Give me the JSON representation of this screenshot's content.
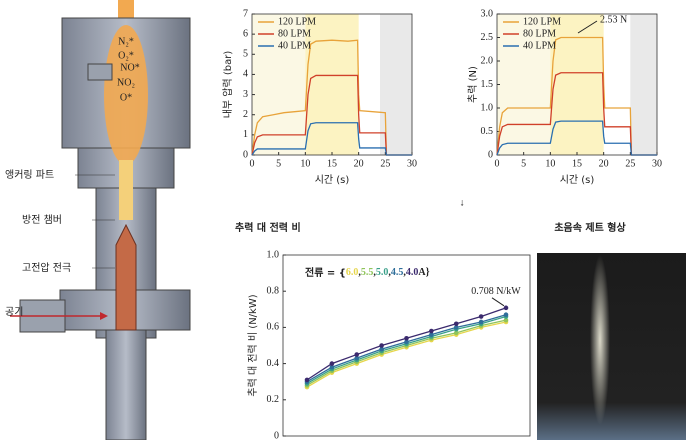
{
  "chart_data": [
    {
      "type": "line",
      "ylabel": "내부 압력 (bar)",
      "xlabel": "시간 (s)",
      "xlim": [
        0,
        30
      ],
      "xticks": [
        0,
        5,
        10,
        15,
        20,
        25,
        30
      ],
      "ylim": [
        0,
        7
      ],
      "yticks": [
        0,
        1,
        2,
        3,
        4,
        5,
        6,
        7
      ],
      "legend": "upper left",
      "regions": [
        {
          "start": 0,
          "end": 10,
          "color": "#fbf8e4"
        },
        {
          "start": 10,
          "end": 20,
          "color": "#fcf3c2"
        },
        {
          "start": 24,
          "end": 30,
          "color": "#e9e9e9"
        }
      ],
      "x": [
        0,
        0.5,
        1,
        2,
        4,
        6,
        8,
        10,
        10.5,
        11,
        12,
        15,
        18,
        19.8,
        20,
        20.2,
        25,
        25.2,
        30
      ],
      "series": [
        {
          "name": "120 LPM",
          "color": "#e8a33a",
          "values": [
            0,
            1.0,
            1.6,
            1.9,
            2.0,
            2.1,
            2.15,
            2.2,
            4.5,
            5.5,
            5.65,
            5.7,
            5.65,
            5.7,
            3.0,
            2.2,
            2.1,
            0,
            0
          ]
        },
        {
          "name": "80 LPM",
          "color": "#d0402a",
          "values": [
            0,
            0.6,
            0.9,
            1.0,
            1.0,
            1.0,
            1.0,
            1.0,
            3.0,
            3.8,
            3.95,
            3.95,
            3.95,
            3.95,
            2.0,
            1.1,
            1.1,
            0,
            0
          ]
        },
        {
          "name": "40 LPM",
          "color": "#2a6fb0",
          "values": [
            0,
            0.2,
            0.3,
            0.3,
            0.3,
            0.3,
            0.3,
            0.3,
            1.2,
            1.55,
            1.6,
            1.6,
            1.6,
            1.6,
            0.8,
            0.35,
            0.35,
            0,
            0
          ]
        }
      ]
    },
    {
      "type": "line",
      "ylabel": "추력 (N)",
      "xlabel": "시간 (s)",
      "xlim": [
        0,
        30
      ],
      "xticks": [
        0,
        5,
        10,
        15,
        20,
        25,
        30
      ],
      "ylim": [
        0,
        3
      ],
      "yticks": [
        0,
        0.5,
        {
          "value": 1,
          "label": "1.0"
        },
        1.5,
        {
          "value": 2,
          "label": "2.0"
        },
        2.5,
        {
          "value": 3,
          "label": "3.0"
        }
      ],
      "legend": "upper left",
      "regions": [
        {
          "start": 0,
          "end": 10,
          "color": "#fbf8e4"
        },
        {
          "start": 10,
          "end": 20,
          "color": "#fcf3c2"
        },
        {
          "start": 25,
          "end": 30,
          "color": "#e9e9e9"
        }
      ],
      "annotation": "2.53 N",
      "x": [
        0,
        0.5,
        1,
        2,
        4,
        6,
        8,
        10,
        10.5,
        11,
        12,
        15,
        18,
        19.8,
        20,
        20.2,
        25,
        25.2,
        30
      ],
      "series": [
        {
          "name": "120 LPM",
          "color": "#e8a33a",
          "values": [
            0,
            0.6,
            0.9,
            1.0,
            1.0,
            1.0,
            1.0,
            1.0,
            2.0,
            2.45,
            2.5,
            2.5,
            2.5,
            2.5,
            1.5,
            1.0,
            1.0,
            0,
            0
          ]
        },
        {
          "name": "80 LPM",
          "color": "#d0402a",
          "values": [
            0,
            0.4,
            0.6,
            0.65,
            0.65,
            0.65,
            0.65,
            0.65,
            1.4,
            1.7,
            1.75,
            1.75,
            1.75,
            1.75,
            1.0,
            0.6,
            0.6,
            0,
            0
          ]
        },
        {
          "name": "40 LPM",
          "color": "#2a6fb0",
          "values": [
            0,
            0.15,
            0.22,
            0.25,
            0.25,
            0.25,
            0.25,
            0.25,
            0.55,
            0.7,
            0.72,
            0.72,
            0.72,
            0.72,
            0.4,
            0.25,
            0.25,
            0,
            0
          ]
        }
      ]
    },
    {
      "type": "line",
      "title": "추력 대 전력 비",
      "ylabel": "추력 대 전력 비 (N/kW)",
      "ylim": [
        0,
        1
      ],
      "yticks": [
        0,
        0.2,
        0.4,
        0.6,
        0.8,
        {
          "value": 1,
          "label": "1.0"
        }
      ],
      "legend_prefix": "전류 = {",
      "legend_separator": ",",
      "legend_suffix": "A}",
      "annotation": "0.708 N/kW",
      "categories": [
        null,
        null,
        null,
        null,
        null,
        null,
        null,
        null,
        null
      ],
      "series": [
        {
          "name": "6.0",
          "color": "#e6d64b",
          "values": [
            0.27,
            0.35,
            0.4,
            0.45,
            0.49,
            0.53,
            0.56,
            0.6,
            0.63
          ]
        },
        {
          "name": "5.5",
          "color": "#8fc45a",
          "values": [
            0.28,
            0.36,
            0.41,
            0.46,
            0.5,
            0.54,
            0.57,
            0.61,
            0.64
          ]
        },
        {
          "name": "5.0",
          "color": "#3aa08a",
          "values": [
            0.29,
            0.37,
            0.42,
            0.47,
            0.51,
            0.55,
            0.59,
            0.62,
            0.66
          ]
        },
        {
          "name": "4.5",
          "color": "#2f6e9a",
          "values": [
            0.3,
            0.38,
            0.43,
            0.48,
            0.52,
            0.56,
            0.6,
            0.63,
            0.67
          ]
        },
        {
          "name": "4.0",
          "color": "#3b2a6e",
          "values": [
            0.31,
            0.4,
            0.45,
            0.5,
            0.54,
            0.58,
            0.62,
            0.66,
            0.708
          ]
        }
      ]
    }
  ],
  "diagram": {
    "species": [
      "N₂*",
      "O₂*",
      "NO*",
      "NO₂",
      "O*"
    ],
    "labels": [
      "앵커링 파트",
      "방전 챔버",
      "고전압 전극",
      "공기"
    ]
  },
  "photo": {
    "title": "초음속 제트 형상"
  }
}
